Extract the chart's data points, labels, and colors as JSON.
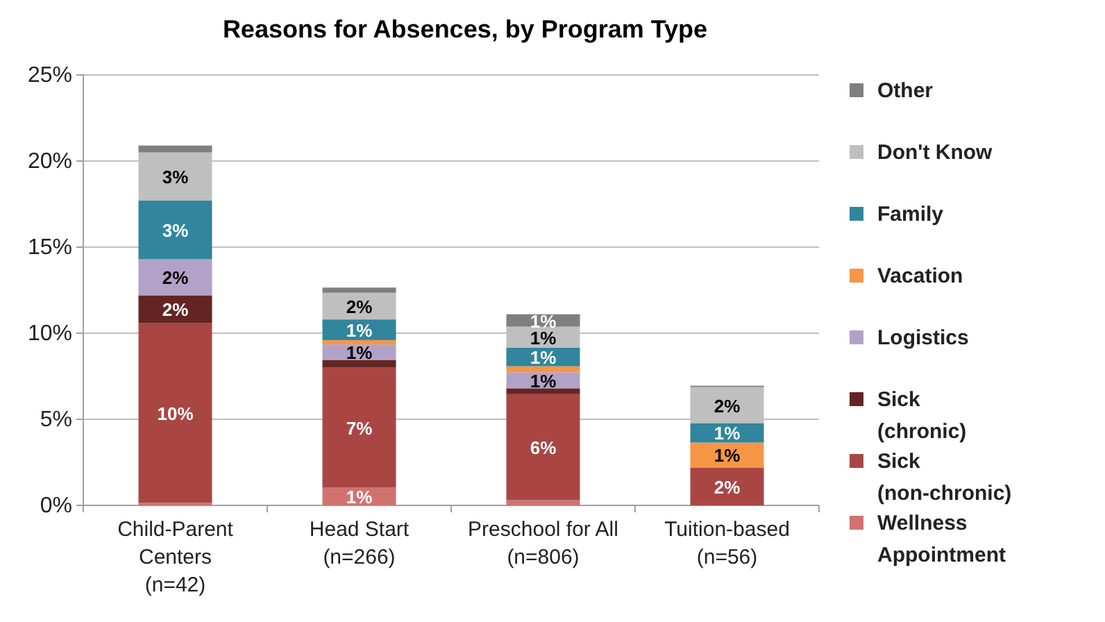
{
  "chart_data": {
    "type": "bar",
    "stacked": true,
    "title": "Reasons for Absences, by Program Type",
    "categories": [
      "Child-Parent Centers (n=42)",
      "Head Start (n=266)",
      "Preschool for All (n=806)",
      "Tuition-based (n=56)"
    ],
    "series": [
      {
        "name": "Wellness Appointment",
        "color": "#d07370",
        "values": [
          0.15,
          1.05,
          0.3,
          0
        ],
        "value_labels": [
          null,
          "1%",
          null,
          null
        ]
      },
      {
        "name": "Sick (non-chronic)",
        "color": "#a94644",
        "values": [
          10.45,
          6.95,
          6.16,
          2.2
        ],
        "value_labels": [
          "10%",
          "7%",
          "6%",
          "2%"
        ]
      },
      {
        "name": "Sick (chronic)",
        "color": "#632523",
        "values": [
          1.6,
          0.45,
          0.34,
          0
        ],
        "value_labels": [
          "2%",
          null,
          null,
          null
        ]
      },
      {
        "name": "Logistics",
        "color": "#b3a2c7",
        "values": [
          2.1,
          0.9,
          0.93,
          0
        ],
        "value_labels": [
          "2%",
          "1%",
          "1%",
          null
        ]
      },
      {
        "name": "Vacation",
        "color": "#f79646",
        "values": [
          0,
          0.25,
          0.35,
          1.45
        ],
        "value_labels": [
          null,
          null,
          null,
          "1%"
        ]
      },
      {
        "name": "Family",
        "color": "#31859c",
        "values": [
          3.4,
          1.2,
          1.08,
          1.13
        ],
        "value_labels": [
          "3%",
          "1%",
          "1%",
          "1%"
        ]
      },
      {
        "name": "Don't Know",
        "color": "#bfbfbf",
        "values": [
          2.8,
          1.55,
          1.22,
          2.09
        ],
        "value_labels": [
          "3%",
          "2%",
          "1%",
          "2%"
        ]
      },
      {
        "name": "Other",
        "color": "#7f7f7f",
        "values": [
          0.4,
          0.3,
          0.72,
          0.08
        ],
        "value_labels": [
          null,
          null,
          "1%",
          null
        ]
      }
    ],
    "ylim": [
      0,
      25
    ],
    "yticks": [
      {
        "value": 0,
        "label": "0%"
      },
      {
        "value": 5,
        "label": "5%"
      },
      {
        "value": 10,
        "label": "10%"
      },
      {
        "value": 15,
        "label": "15%"
      },
      {
        "value": 20,
        "label": "20%"
      },
      {
        "value": 25,
        "label": "25%"
      }
    ],
    "grid": "y",
    "legend": "right"
  }
}
